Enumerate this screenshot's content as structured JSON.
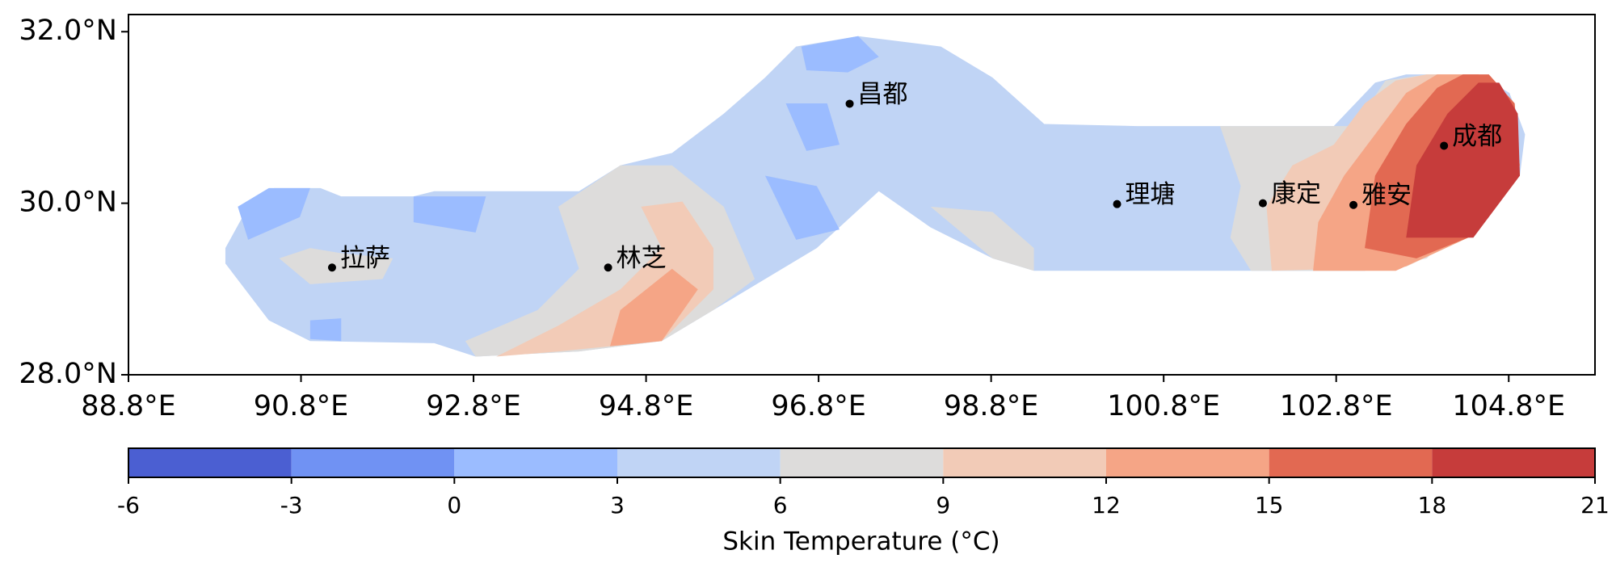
{
  "chart_data": {
    "type": "contour-map",
    "xlim": [
      88.8,
      105.8
    ],
    "ylim": [
      28.0,
      32.2
    ],
    "xticks": [
      {
        "value": 88.8,
        "label": "88.8°E"
      },
      {
        "value": 90.8,
        "label": "90.8°E"
      },
      {
        "value": 92.8,
        "label": "92.8°E"
      },
      {
        "value": 94.8,
        "label": "94.8°E"
      },
      {
        "value": 96.8,
        "label": "96.8°E"
      },
      {
        "value": 98.8,
        "label": "98.8°E"
      },
      {
        "value": 100.8,
        "label": "100.8°E"
      },
      {
        "value": 102.8,
        "label": "102.8°E"
      },
      {
        "value": 104.8,
        "label": "104.8°E"
      }
    ],
    "yticks": [
      {
        "value": 28.0,
        "label": "28.0°N"
      },
      {
        "value": 30.0,
        "label": "30.0°N"
      },
      {
        "value": 32.0,
        "label": "32.0°N"
      }
    ],
    "cities": [
      {
        "name": "拉萨",
        "lon": 91.16,
        "lat": 29.25
      },
      {
        "name": "林芝",
        "lon": 94.36,
        "lat": 29.25
      },
      {
        "name": "昌都",
        "lon": 97.16,
        "lat": 31.16
      },
      {
        "name": "理塘",
        "lon": 100.26,
        "lat": 29.99
      },
      {
        "name": "康定",
        "lon": 101.95,
        "lat": 30.0
      },
      {
        "name": "雅安",
        "lon": 103.0,
        "lat": 29.98
      },
      {
        "name": "成都",
        "lon": 104.05,
        "lat": 30.67
      }
    ],
    "colorbar": {
      "label": "Skin Temperature (°C)",
      "levels": [
        -6,
        -3,
        0,
        3,
        6,
        9,
        12,
        15,
        18,
        21
      ],
      "colors": [
        "#4b5fd2",
        "#7092f3",
        "#9bbcff",
        "#c0d4f5",
        "#dddcdb",
        "#f2cbb7",
        "#f5a586",
        "#e26952",
        "#c63c3b"
      ]
    }
  }
}
